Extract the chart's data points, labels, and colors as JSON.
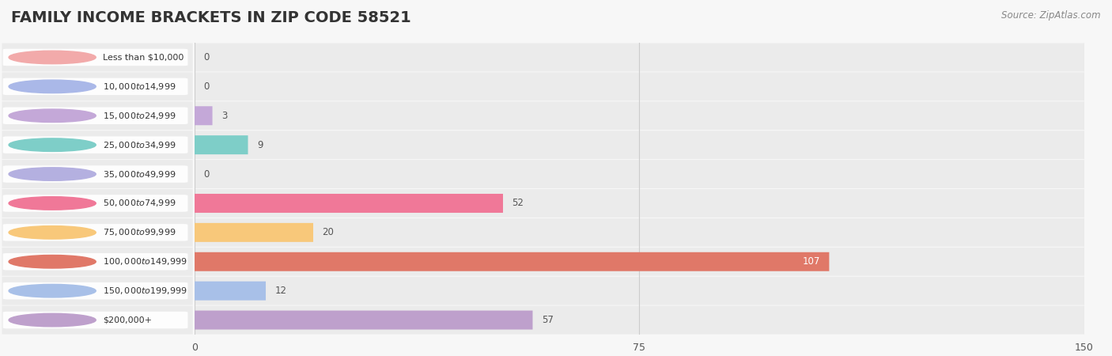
{
  "title": "FAMILY INCOME BRACKETS IN ZIP CODE 58521",
  "source": "Source: ZipAtlas.com",
  "categories": [
    "Less than $10,000",
    "$10,000 to $14,999",
    "$15,000 to $24,999",
    "$25,000 to $34,999",
    "$35,000 to $49,999",
    "$50,000 to $74,999",
    "$75,000 to $99,999",
    "$100,000 to $149,999",
    "$150,000 to $199,999",
    "$200,000+"
  ],
  "values": [
    0,
    0,
    3,
    9,
    0,
    52,
    20,
    107,
    12,
    57
  ],
  "bar_colors": [
    "#F2AAAA",
    "#AAB8E8",
    "#C4A8D8",
    "#7ECEC8",
    "#B4B0E0",
    "#F07898",
    "#F8C87A",
    "#E07868",
    "#A8C0E8",
    "#BEA0CC"
  ],
  "xlim": [
    0,
    150
  ],
  "xticks": [
    0,
    75,
    150
  ],
  "background_color": "#f7f7f7",
  "row_bg_color": "#ebebeb",
  "title_fontsize": 14,
  "bar_height": 0.65,
  "value_label_inside_color": "#ffffff",
  "value_label_outside_color": "#555555"
}
